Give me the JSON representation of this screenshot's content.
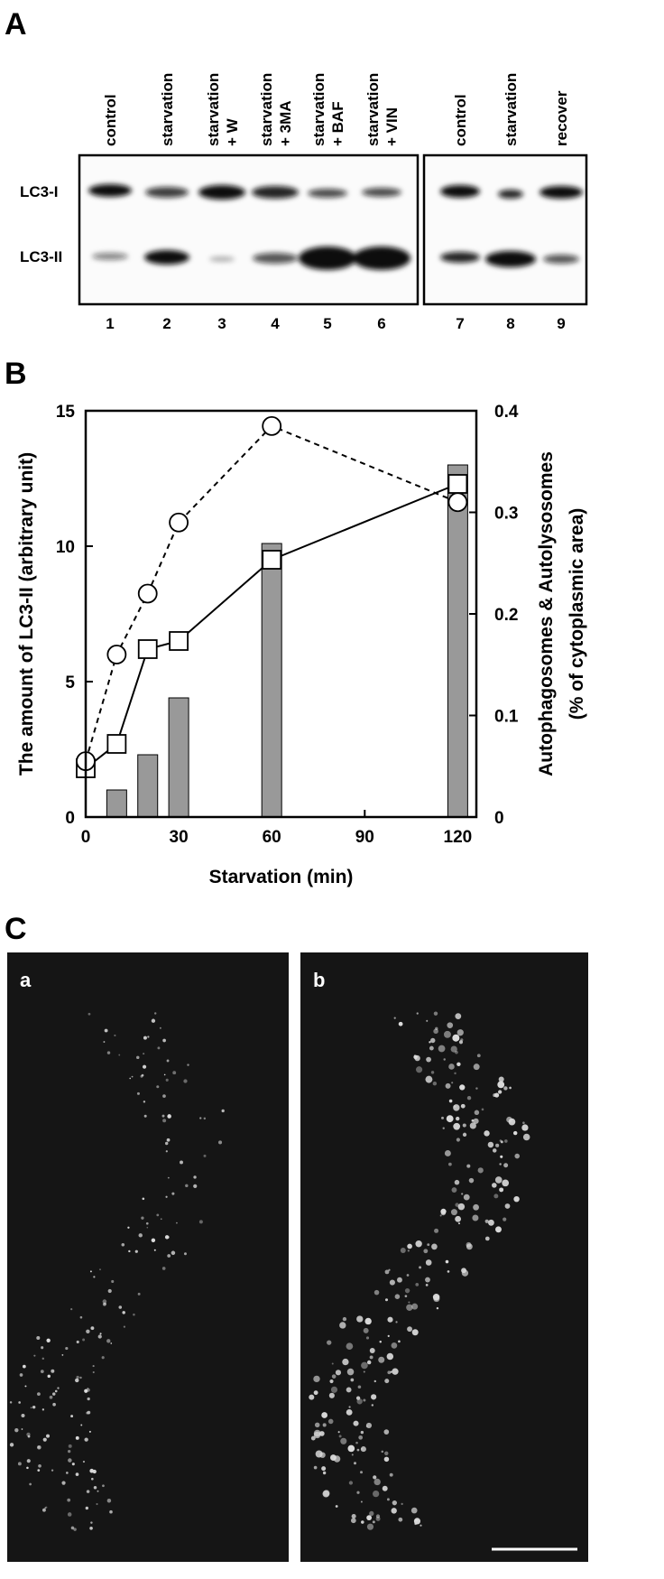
{
  "panel_a": {
    "label": "A",
    "lanes": [
      [
        "control"
      ],
      [
        "starvation"
      ],
      [
        "starvation",
        "+ W"
      ],
      [
        "starvation",
        "+ 3MA"
      ],
      [
        "starvation",
        "+ BAF"
      ],
      [
        "starvation",
        "+ VIN"
      ],
      [
        "control"
      ],
      [
        "starvation"
      ],
      [
        "recover"
      ]
    ],
    "bands": [
      "LC3-I",
      "LC3-II"
    ],
    "lane_numbers": [
      1,
      2,
      3,
      4,
      5,
      6,
      7,
      8,
      9
    ]
  },
  "chart_data": {
    "type": "bar-line",
    "label": "B",
    "xlabel": "Starvation (min)",
    "ylabel": "The amount of LC3-II (arbitrary unit)",
    "y2label": [
      "Autophagosomes & Autolysosomes",
      "(% of cytoplasmic area)"
    ],
    "xlim": [
      0,
      126
    ],
    "xticks": [
      0,
      30,
      60,
      90,
      120
    ],
    "ylim": [
      0,
      15
    ],
    "yticks": [
      0,
      5,
      10,
      15
    ],
    "y2lim": [
      0,
      0.4
    ],
    "y2ticks": [
      0,
      0.1,
      0.2,
      0.3,
      0.4
    ],
    "series": [
      {
        "kind": "bar",
        "color": "#999999",
        "x": [
          10,
          20,
          30,
          60,
          120
        ],
        "values": [
          1.0,
          2.3,
          4.4,
          10.1,
          13.0
        ]
      },
      {
        "kind": "line",
        "marker": "square",
        "line_style": "solid",
        "color": "#000000",
        "x": [
          0,
          10,
          20,
          30,
          60,
          120
        ],
        "values": [
          1.8,
          2.7,
          6.2,
          6.5,
          9.5,
          12.3
        ]
      },
      {
        "kind": "line",
        "marker": "circle",
        "line_style": "dashed",
        "color": "#000000",
        "axis": "y2",
        "x": [
          0,
          10,
          20,
          30,
          60,
          120
        ],
        "values": [
          0.055,
          0.16,
          0.22,
          0.29,
          0.385,
          0.31
        ]
      }
    ]
  },
  "panel_c": {
    "label": "C",
    "images": [
      "a",
      "b"
    ]
  }
}
